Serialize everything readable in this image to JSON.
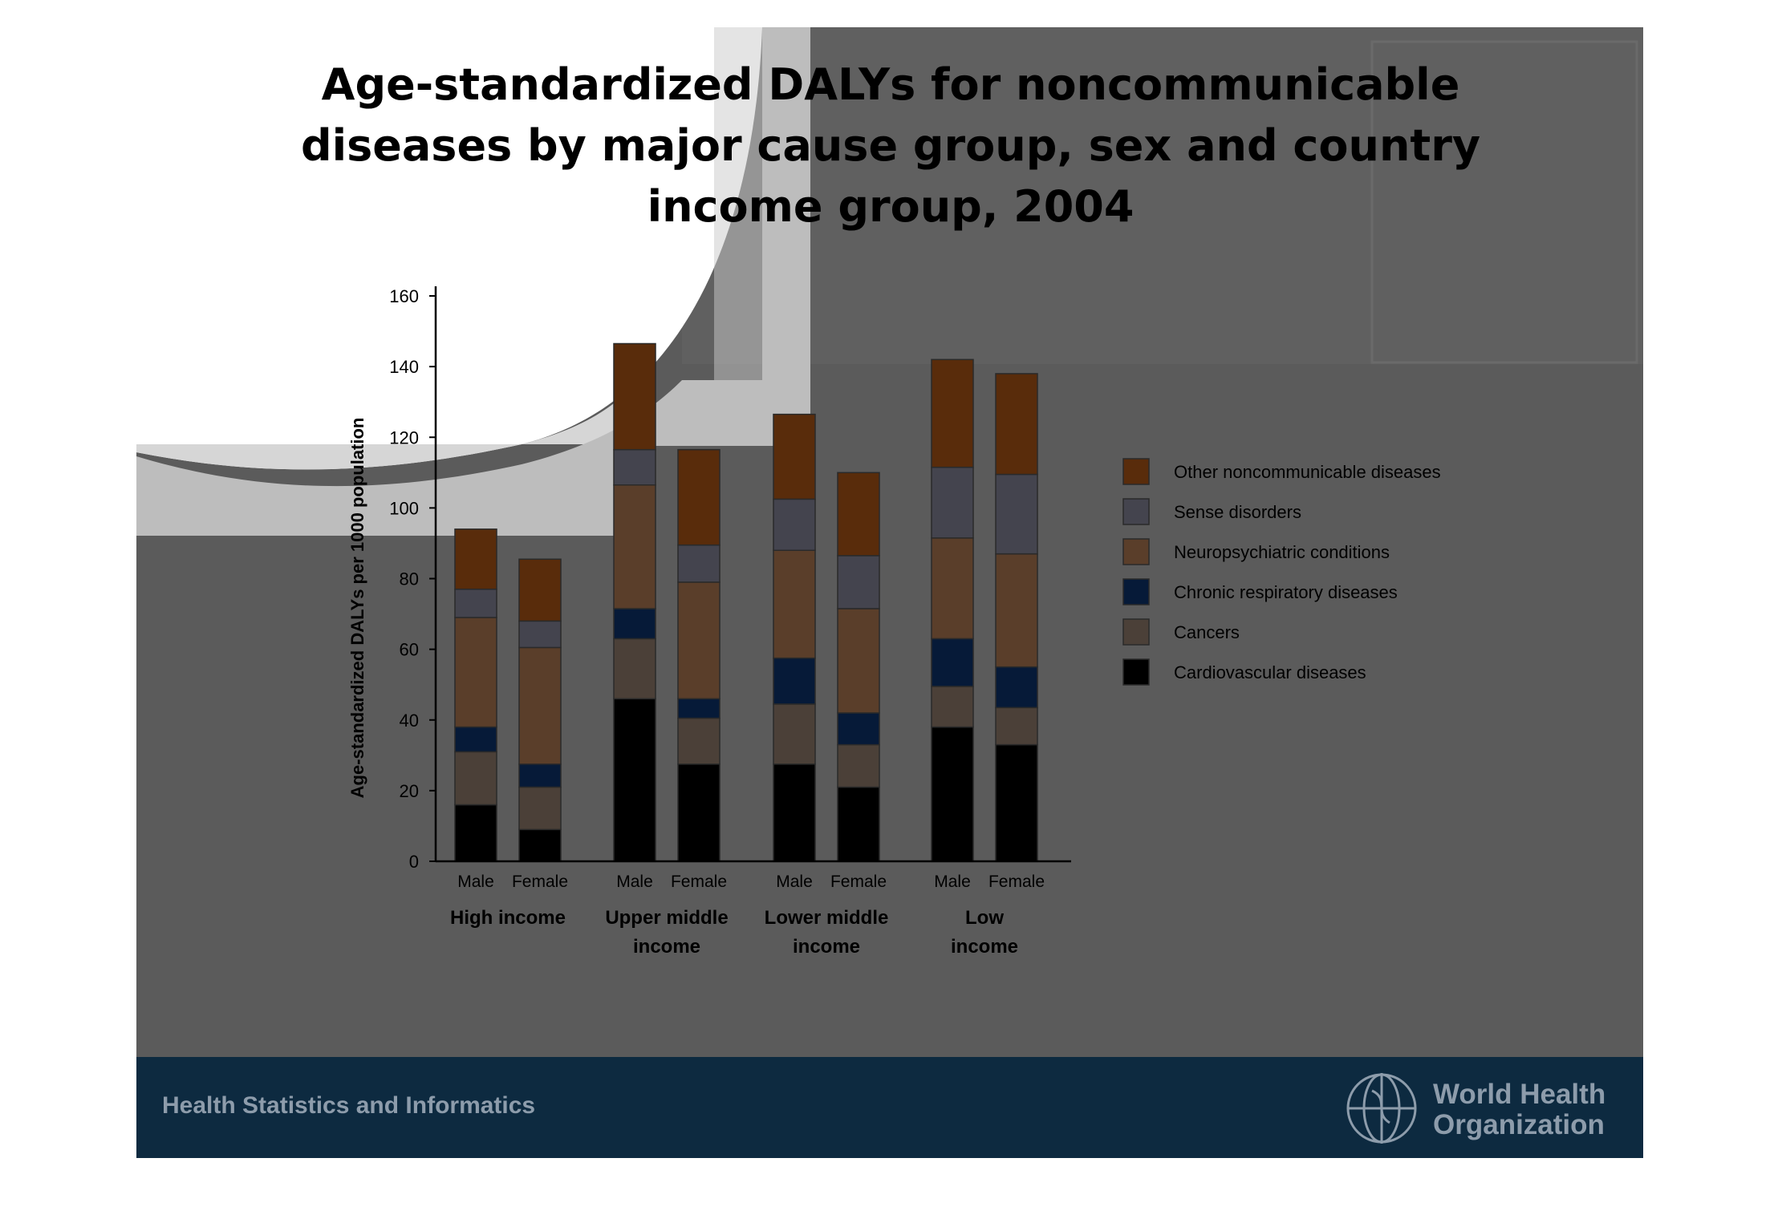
{
  "slide": {
    "footer_text": "Health Statistics and Informatics",
    "logo_text_line1": "World Health",
    "logo_text_line2": "Organization"
  },
  "chart_data": {
    "type": "bar",
    "stacked": true,
    "title": "Age-standardized DALYs for noncommunicable diseases by major cause group,  sex and country income group, 2004",
    "ylabel": "Age-standardized DALYs per 1000 population",
    "ylim": [
      0,
      160
    ],
    "yticks": [
      0,
      20,
      40,
      60,
      80,
      100,
      120,
      140,
      160
    ],
    "grid": false,
    "legend_position": "right",
    "categories": [
      "Male",
      "Female",
      "Male",
      "Female",
      "Male",
      "Female",
      "Male",
      "Female"
    ],
    "groups": [
      {
        "label": [
          "High income"
        ]
      },
      {
        "label": [
          "Upper middle",
          "income"
        ]
      },
      {
        "label": [
          "Lower middle",
          "income"
        ]
      },
      {
        "label": [
          "Low",
          "income"
        ]
      }
    ],
    "series": [
      {
        "name": "Cardiovascular diseases",
        "color": "#000000",
        "values": [
          16,
          9,
          46,
          27.5,
          27.5,
          21,
          38,
          33
        ]
      },
      {
        "name": "Cancers",
        "color": "#4b4038",
        "values": [
          15,
          12,
          17,
          13,
          17,
          12,
          11.5,
          10.5
        ]
      },
      {
        "name": "Chronic respiratory diseases",
        "color": "#061a38",
        "values": [
          7,
          6.5,
          8.5,
          5.5,
          13,
          9,
          13.5,
          11.5
        ]
      },
      {
        "name": "Neuropsychiatric conditions",
        "color": "#5a3e2a",
        "values": [
          31,
          33,
          35,
          33,
          30.5,
          29.5,
          28.5,
          32
        ]
      },
      {
        "name": "Sense disorders",
        "color": "#44444e",
        "values": [
          8,
          7.5,
          10,
          10.5,
          14.5,
          15,
          20,
          22.5
        ]
      },
      {
        "name": "Other noncommunicable diseases",
        "color": "#592c0b",
        "values": [
          17,
          17.5,
          30,
          27,
          24,
          23.5,
          30.5,
          28.5
        ]
      }
    ]
  }
}
